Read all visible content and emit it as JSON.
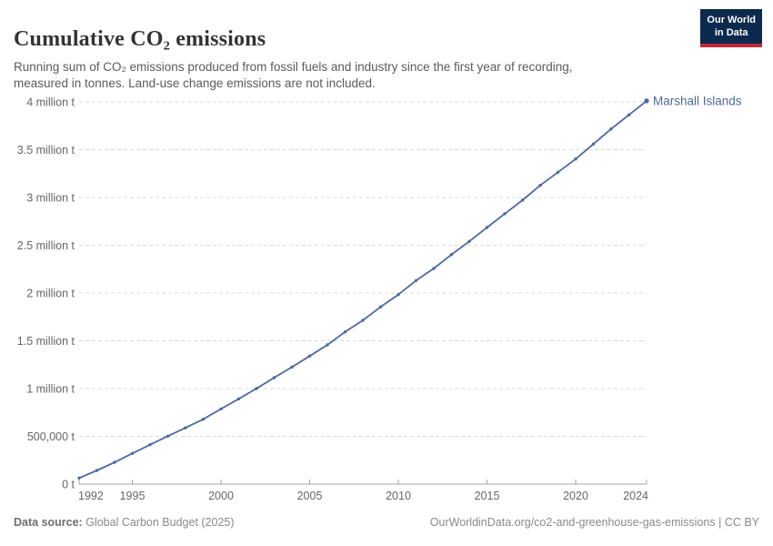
{
  "header": {
    "title": "Cumulative CO₂ emissions",
    "subtitle": "Running sum of CO₂ emissions produced from fossil fuels and industry since the first year of recording, measured in tonnes. Land-use change emissions are not included.",
    "logo": {
      "line1": "Our World",
      "line2": "in Data"
    }
  },
  "footer": {
    "source_label": "Data source:",
    "source_value": "Global Carbon Budget (2025)",
    "credit": "OurWorldinData.org/co2-and-greenhouse-gas-emissions | CC BY"
  },
  "colors": {
    "accent_blue": "#4c6a9e",
    "logo_navy": "#0c2a4e",
    "logo_red": "#c4283c",
    "gridline": "#dadada",
    "axis": "#a3a3a3",
    "tick_label": "#666666",
    "title": "#333333",
    "subtitle": "#5b5b5b",
    "footer": "#8a8a8a"
  },
  "chart_data": {
    "type": "line",
    "title": "Cumulative CO₂ emissions",
    "entity_label": "Marshall Islands",
    "xlabel": "",
    "ylabel": "tonnes",
    "grid": "dashed-horizontal",
    "legend": "end-of-line-label",
    "xlim": [
      1992,
      2024
    ],
    "ylim": [
      0,
      4000000
    ],
    "x": [
      1992,
      1993,
      1994,
      1995,
      1996,
      1997,
      1998,
      1999,
      2000,
      2001,
      2002,
      2003,
      2004,
      2005,
      2006,
      2007,
      2008,
      2009,
      2010,
      2011,
      2012,
      2013,
      2014,
      2015,
      2016,
      2017,
      2018,
      2019,
      2020,
      2021,
      2022,
      2023,
      2024
    ],
    "series": [
      {
        "name": "Marshall Islands",
        "color": "#4c6a9e",
        "values": [
          64000,
          143000,
          229000,
          321000,
          412000,
          502000,
          590000,
          679000,
          787000,
          892000,
          1000000,
          1114000,
          1225000,
          1340000,
          1457000,
          1593000,
          1714000,
          1854000,
          1984000,
          2130000,
          2257000,
          2403000,
          2540000,
          2686000,
          2830000,
          2971000,
          3127000,
          3264000,
          3403000,
          3559000,
          3717000,
          3864000,
          4010000
        ]
      }
    ],
    "yticks": [
      {
        "value": 0,
        "label": "0 t"
      },
      {
        "value": 500000,
        "label": "500,000 t"
      },
      {
        "value": 1000000,
        "label": "1 million t"
      },
      {
        "value": 1500000,
        "label": "1.5 million t"
      },
      {
        "value": 2000000,
        "label": "2 million t"
      },
      {
        "value": 2500000,
        "label": "2.5 million t"
      },
      {
        "value": 3000000,
        "label": "3 million t"
      },
      {
        "value": 3500000,
        "label": "3.5 million t"
      },
      {
        "value": 4000000,
        "label": "4 million t"
      }
    ],
    "xticks": [
      {
        "value": 1992,
        "label": "1992"
      },
      {
        "value": 1995,
        "label": "1995"
      },
      {
        "value": 2000,
        "label": "2000"
      },
      {
        "value": 2005,
        "label": "2005"
      },
      {
        "value": 2010,
        "label": "2010"
      },
      {
        "value": 2015,
        "label": "2015"
      },
      {
        "value": 2020,
        "label": "2020"
      },
      {
        "value": 2024,
        "label": "2024"
      }
    ]
  }
}
